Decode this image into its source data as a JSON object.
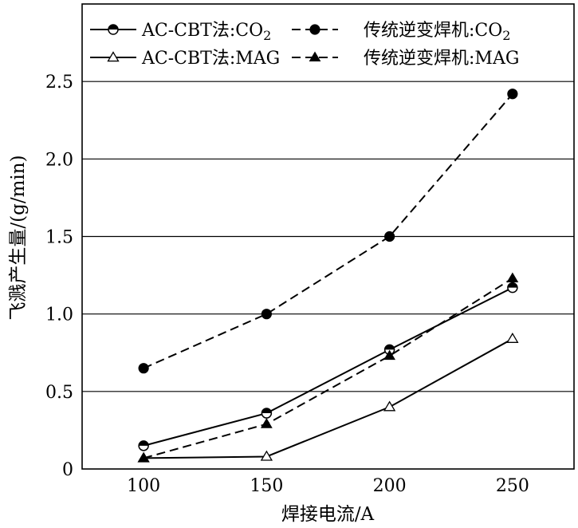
{
  "chart_data": {
    "type": "line",
    "xlabel": "焊接电流/A",
    "ylabel": "飞溅产生量/(g/min)",
    "x": [
      100,
      150,
      200,
      250
    ],
    "xticks": [
      "100",
      "150",
      "200",
      "250"
    ],
    "yticks": [
      "0",
      "0.5",
      "1.0",
      "1.5",
      "2.0",
      "2.5"
    ],
    "xlim": [
      75,
      275
    ],
    "ylim": [
      0,
      3.0
    ],
    "grid": "horizontal",
    "legend_position": "top",
    "series": [
      {
        "name": "AC-CBT法:CO",
        "subscript": "2",
        "marker": "half-circle",
        "line": "solid",
        "values": [
          0.15,
          0.36,
          0.77,
          1.17
        ]
      },
      {
        "name": "传统逆变焊机:CO",
        "subscript": "2",
        "marker": "filled-circle",
        "line": "dashed",
        "values": [
          0.65,
          1.0,
          1.5,
          2.42
        ]
      },
      {
        "name": "AC-CBT法:MAG",
        "marker": "open-triangle",
        "line": "solid",
        "values": [
          0.07,
          0.08,
          0.4,
          0.84
        ]
      },
      {
        "name": "传统逆变焊机:MAG",
        "marker": "filled-triangle",
        "line": "dashed",
        "values": [
          0.07,
          0.29,
          0.73,
          1.23
        ]
      }
    ]
  }
}
